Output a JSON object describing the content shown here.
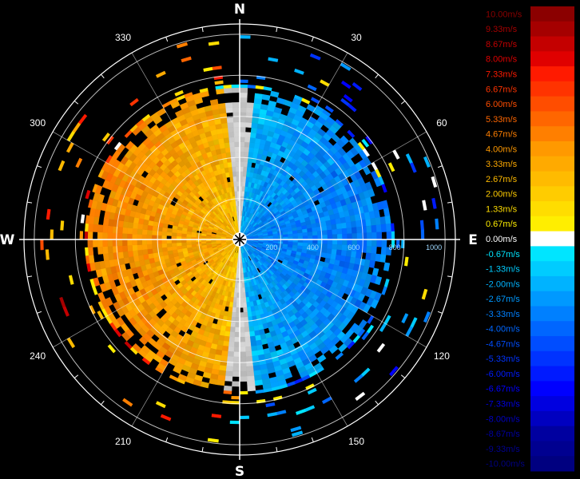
{
  "chart_data": {
    "type": "heatmap",
    "subtype": "polar-radial-velocity-ppi",
    "compass": {
      "north": "N",
      "east": "E",
      "south": "S",
      "west": "W"
    },
    "azimuth_labels": [
      "30",
      "60",
      "120",
      "150",
      "210",
      "240",
      "300",
      "330"
    ],
    "azimuth_label_degrees": [
      30,
      60,
      120,
      150,
      210,
      240,
      300,
      330
    ],
    "range_labels": [
      "200",
      "400",
      "600",
      "800",
      "1000"
    ],
    "range_values": [
      200,
      400,
      600,
      800,
      1000
    ],
    "range_max": 1050,
    "grid": true,
    "colorbar": {
      "placement": "right",
      "unit": "m/s",
      "labels": [
        "10.00m/s",
        "9.33m/s",
        "8.67m/s",
        "8.00m/s",
        "7.33m/s",
        "6.67m/s",
        "6.00m/s",
        "5.33m/s",
        "4.67m/s",
        "4.00m/s",
        "3.33m/s",
        "2.67m/s",
        "2.00m/s",
        "1.33m/s",
        "0.67m/s",
        "0.00m/s",
        "-0.67m/s",
        "-1.33m/s",
        "-2.00m/s",
        "-2.67m/s",
        "-3.33m/s",
        "-4.00m/s",
        "-4.67m/s",
        "-5.33m/s",
        "-6.00m/s",
        "-6.67m/s",
        "-7.33m/s",
        "-8.00m/s",
        "-8.67m/s",
        "-9.33m/s",
        "-10.00m/s"
      ],
      "values": [
        10.0,
        9.33,
        8.67,
        8.0,
        7.33,
        6.67,
        6.0,
        5.33,
        4.67,
        4.0,
        3.33,
        2.67,
        2.0,
        1.33,
        0.67,
        0.0,
        -0.67,
        -1.33,
        -2.0,
        -2.67,
        -3.33,
        -4.0,
        -4.67,
        -5.33,
        -6.0,
        -6.67,
        -7.33,
        -8.0,
        -8.67,
        -9.33,
        -10.0
      ],
      "colors": [
        "#8b0000",
        "#a50000",
        "#c40000",
        "#e00000",
        "#ff1a00",
        "#ff3300",
        "#ff4d00",
        "#ff6600",
        "#ff7f00",
        "#ff9900",
        "#ffaa00",
        "#ffbb00",
        "#ffcc00",
        "#ffdd00",
        "#ffee00",
        "#ffffff",
        "#00e5ff",
        "#00ccff",
        "#00b3ff",
        "#0099ff",
        "#0080ff",
        "#0066ff",
        "#004dff",
        "#0033ff",
        "#001aff",
        "#0000ff",
        "#0000e0",
        "#0000c0",
        "#0000a0",
        "#000090",
        "#000080"
      ]
    },
    "velocity_field": {
      "description_values": "approaching (negative, blue) on east half, receding (positive, yellow-orange) on west half",
      "east_velocity": -3.0,
      "west_velocity": 2.5,
      "wind_from_azimuth": 270,
      "dense_echo_range": 720,
      "sparse_echo_range": 1000
    }
  }
}
